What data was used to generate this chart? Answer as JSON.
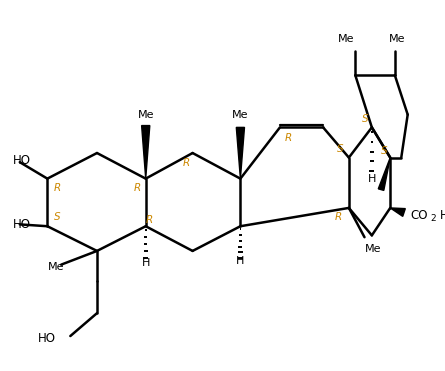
{
  "bg_color": "#ffffff",
  "line_color": "#000000",
  "stereo_color": "#cc8800",
  "figsize": [
    4.45,
    3.71
  ],
  "dpi": 100,
  "xlim": [
    0,
    10
  ],
  "ylim": [
    0,
    8.3
  ]
}
